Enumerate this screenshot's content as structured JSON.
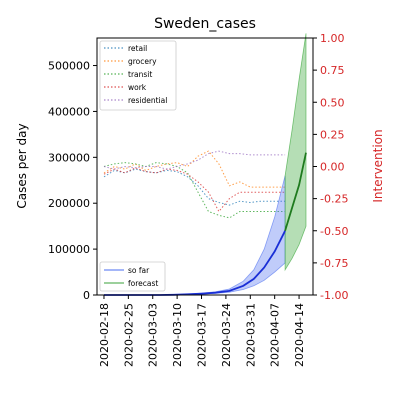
{
  "chart_data": {
    "type": "line",
    "title": "Sweden_cases",
    "ylabel_left": "Cases per day",
    "ylabel_right": "Intervention",
    "ylim_left": [
      0,
      560000
    ],
    "ylim_right": [
      -1.0,
      1.0
    ],
    "yticks_left": [
      0,
      100000,
      200000,
      300000,
      400000,
      500000
    ],
    "yticks_right": [
      -1.0,
      -0.75,
      -0.5,
      -0.25,
      0.0,
      0.25,
      0.5,
      0.75,
      1.0
    ],
    "xlim": [
      "2020-02-16",
      "2020-04-18"
    ],
    "x_ticks": [
      "2020-02-18",
      "2020-02-25",
      "2020-03-03",
      "2020-03-10",
      "2020-03-17",
      "2020-03-24",
      "2020-03-31",
      "2020-04-07",
      "2020-04-14"
    ],
    "legend_top_left": [
      "retail",
      "grocery",
      "transit",
      "work",
      "residential"
    ],
    "legend_bottom_left": [
      "so far",
      "forecast"
    ],
    "colors": {
      "retail": "#1f77b4",
      "grocery": "#ff7f0e",
      "transit": "#2ca02c",
      "work": "#d62728",
      "residential": "#9467bd",
      "so_far": "#0000ff",
      "forecast": "#008000",
      "right_axis": "#d62728"
    },
    "mobility_series": [
      {
        "name": "retail",
        "x": [
          "2020-02-18",
          "2020-02-21",
          "2020-02-24",
          "2020-02-27",
          "2020-03-01",
          "2020-03-04",
          "2020-03-07",
          "2020-03-10",
          "2020-03-13",
          "2020-03-16",
          "2020-03-19",
          "2020-03-22",
          "2020-03-25",
          "2020-03-28",
          "2020-03-31",
          "2020-04-03",
          "2020-04-06",
          "2020-04-10"
        ],
        "y": [
          -0.08,
          -0.03,
          -0.05,
          -0.02,
          -0.04,
          -0.05,
          -0.03,
          -0.04,
          -0.08,
          -0.15,
          -0.25,
          -0.28,
          -0.3,
          -0.27,
          -0.28,
          -0.27,
          -0.27,
          -0.27
        ]
      },
      {
        "name": "grocery",
        "x": [
          "2020-02-18",
          "2020-02-21",
          "2020-02-24",
          "2020-02-27",
          "2020-03-01",
          "2020-03-04",
          "2020-03-07",
          "2020-03-10",
          "2020-03-13",
          "2020-03-16",
          "2020-03-19",
          "2020-03-22",
          "2020-03-25",
          "2020-03-28",
          "2020-03-31",
          "2020-04-03",
          "2020-04-06",
          "2020-04-10"
        ],
        "y": [
          -0.05,
          0.0,
          -0.02,
          0.02,
          -0.03,
          0.0,
          0.02,
          0.03,
          0.0,
          0.08,
          0.12,
          0.02,
          -0.15,
          -0.12,
          -0.16,
          -0.16,
          -0.16,
          -0.16
        ]
      },
      {
        "name": "transit",
        "x": [
          "2020-02-18",
          "2020-02-21",
          "2020-02-24",
          "2020-02-27",
          "2020-03-01",
          "2020-03-04",
          "2020-03-07",
          "2020-03-10",
          "2020-03-13",
          "2020-03-16",
          "2020-03-19",
          "2020-03-22",
          "2020-03-25",
          "2020-03-28",
          "2020-03-31",
          "2020-04-03",
          "2020-04-06",
          "2020-04-10"
        ],
        "y": [
          0.0,
          0.02,
          0.03,
          0.02,
          0.0,
          0.03,
          0.02,
          0.0,
          -0.05,
          -0.2,
          -0.35,
          -0.38,
          -0.4,
          -0.35,
          -0.35,
          -0.35,
          -0.35,
          -0.35
        ]
      },
      {
        "name": "work",
        "x": [
          "2020-02-18",
          "2020-02-21",
          "2020-02-24",
          "2020-02-27",
          "2020-03-01",
          "2020-03-04",
          "2020-03-07",
          "2020-03-10",
          "2020-03-13",
          "2020-03-16",
          "2020-03-19",
          "2020-03-22",
          "2020-03-25",
          "2020-03-28",
          "2020-03-31",
          "2020-04-03",
          "2020-04-06",
          "2020-04-10"
        ],
        "y": [
          -0.06,
          -0.02,
          -0.05,
          -0.01,
          -0.04,
          -0.05,
          -0.02,
          -0.03,
          -0.06,
          -0.12,
          -0.2,
          -0.35,
          -0.25,
          -0.2,
          -0.2,
          -0.2,
          -0.2,
          -0.2
        ]
      },
      {
        "name": "residential",
        "x": [
          "2020-02-18",
          "2020-02-21",
          "2020-02-24",
          "2020-02-27",
          "2020-03-01",
          "2020-03-04",
          "2020-03-07",
          "2020-03-10",
          "2020-03-13",
          "2020-03-16",
          "2020-03-19",
          "2020-03-22",
          "2020-03-25",
          "2020-03-28",
          "2020-03-31",
          "2020-04-03",
          "2020-04-06",
          "2020-04-10"
        ],
        "y": [
          0.0,
          -0.02,
          0.0,
          -0.01,
          0.0,
          0.0,
          -0.02,
          0.0,
          0.02,
          0.05,
          0.1,
          0.12,
          0.1,
          0.1,
          0.09,
          0.09,
          0.09,
          0.09
        ]
      }
    ],
    "so_far": {
      "name": "so far",
      "x": [
        "2020-02-18",
        "2020-02-22",
        "2020-02-26",
        "2020-03-01",
        "2020-03-05",
        "2020-03-09",
        "2020-03-13",
        "2020-03-17",
        "2020-03-21",
        "2020-03-25",
        "2020-03-29",
        "2020-04-01",
        "2020-04-04",
        "2020-04-07",
        "2020-04-10"
      ],
      "y": [
        0,
        0,
        0,
        0,
        0,
        500,
        1500,
        3000,
        5000,
        9000,
        20000,
        35000,
        60000,
        95000,
        140000
      ],
      "lower": [
        0,
        0,
        0,
        0,
        0,
        300,
        1000,
        2000,
        3500,
        6000,
        12000,
        20000,
        32000,
        50000,
        70000
      ],
      "upper": [
        0,
        0,
        0,
        0,
        0,
        800,
        2000,
        4000,
        7000,
        13000,
        30000,
        55000,
        100000,
        170000,
        260000
      ]
    },
    "forecast": {
      "name": "forecast",
      "x": [
        "2020-04-10",
        "2020-04-12",
        "2020-04-14",
        "2020-04-16"
      ],
      "y": [
        140000,
        190000,
        240000,
        310000
      ],
      "lower": [
        55000,
        80000,
        110000,
        150000
      ],
      "upper": [
        260000,
        360000,
        470000,
        570000
      ]
    }
  }
}
